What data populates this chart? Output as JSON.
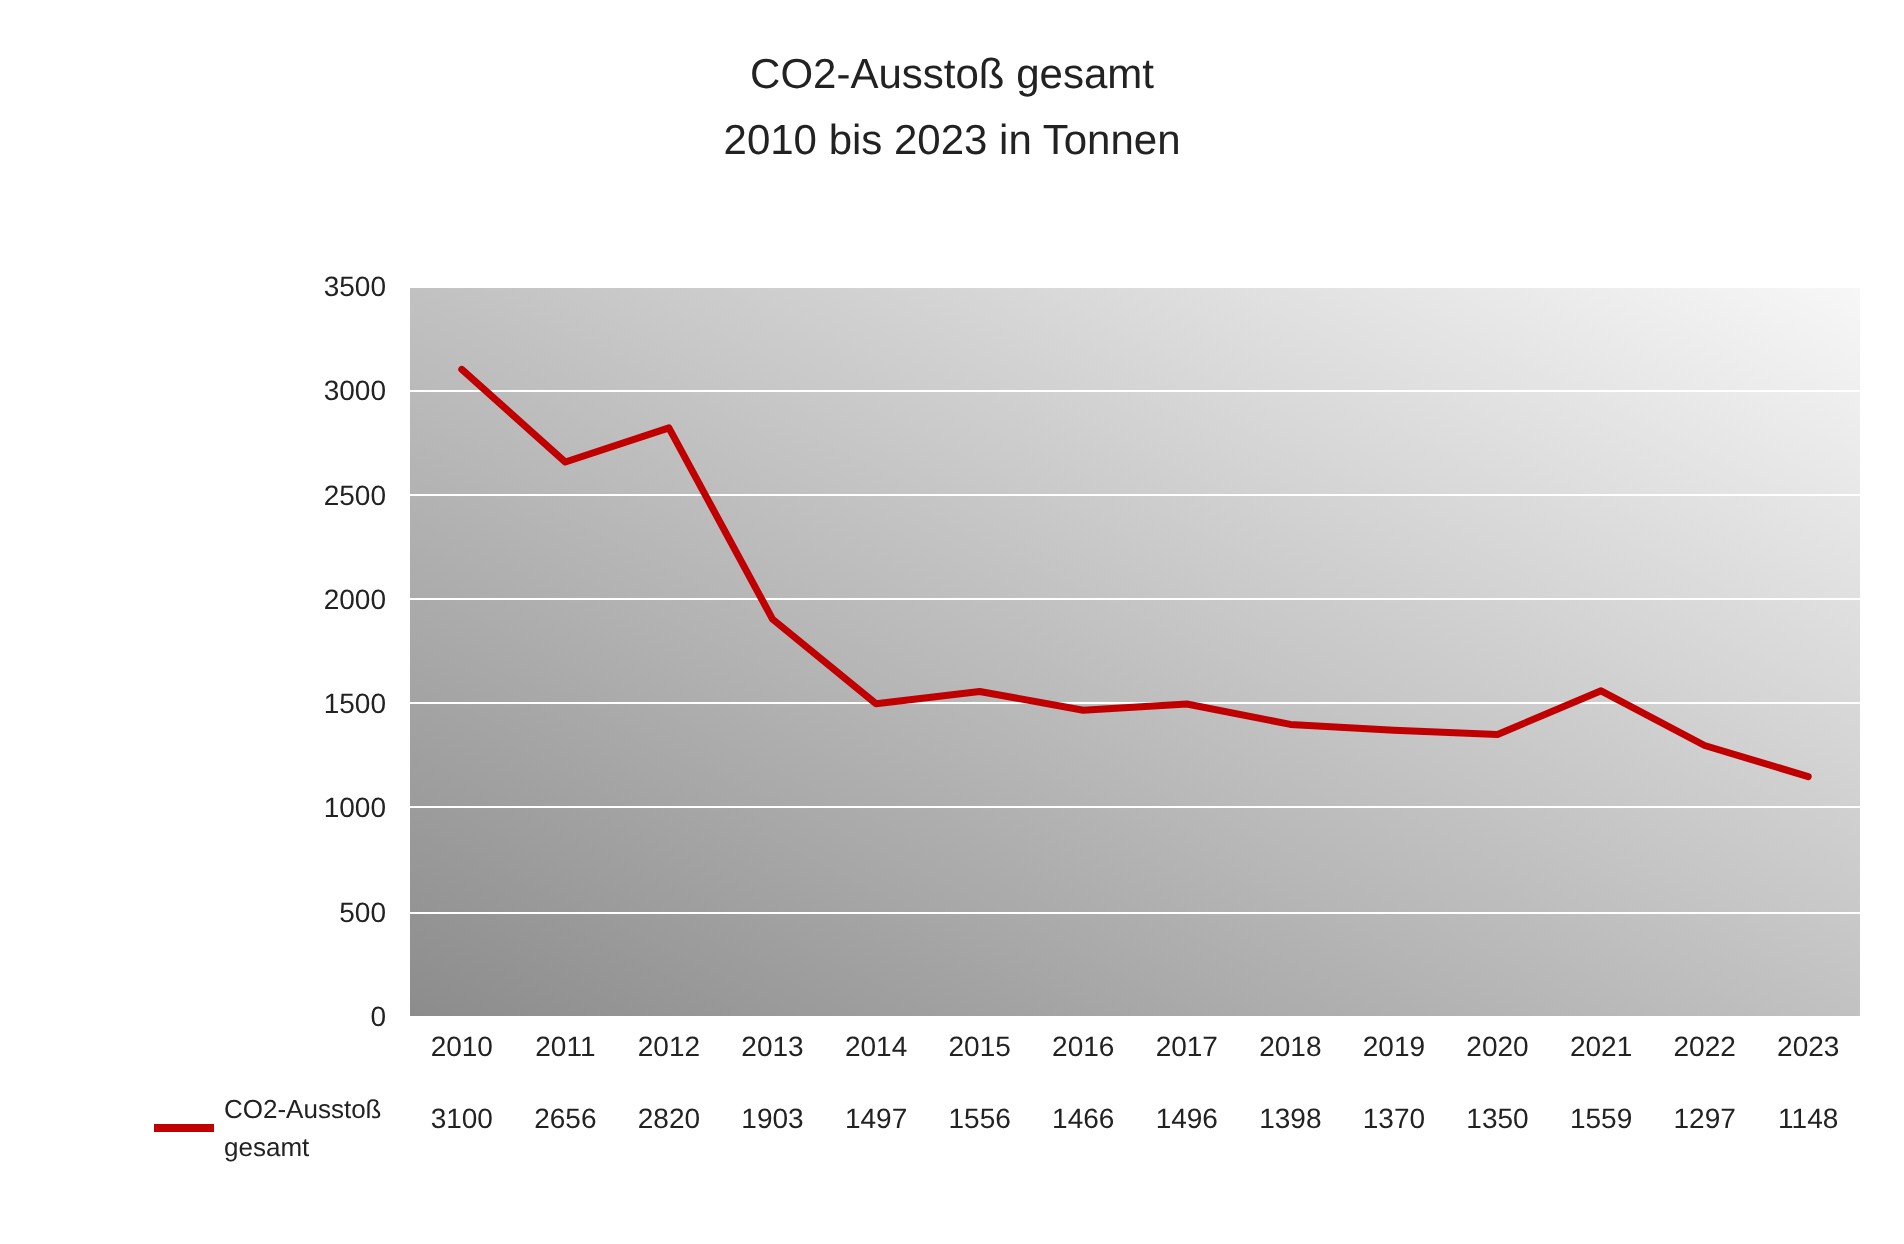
{
  "chart_data": {
    "type": "line",
    "title": "CO2-Ausstoß gesamt",
    "subtitle": "2010 bis 2023 in Tonnen",
    "categories": [
      "2010",
      "2011",
      "2012",
      "2013",
      "2014",
      "2015",
      "2016",
      "2017",
      "2018",
      "2019",
      "2020",
      "2021",
      "2022",
      "2023"
    ],
    "series": [
      {
        "name": "CO2-Ausstoß gesamt",
        "color": "#c00000",
        "values": [
          3100,
          2656,
          2820,
          1903,
          1497,
          1556,
          1466,
          1496,
          1398,
          1370,
          1350,
          1559,
          1297,
          1148
        ]
      }
    ],
    "ylim": [
      0,
      3500
    ],
    "yticks": [
      0,
      500,
      1000,
      1500,
      2000,
      2500,
      3000,
      3500
    ],
    "grid": "y",
    "legend": "bottom left",
    "marker": "none",
    "line_style": "solid",
    "data_labels": true
  }
}
